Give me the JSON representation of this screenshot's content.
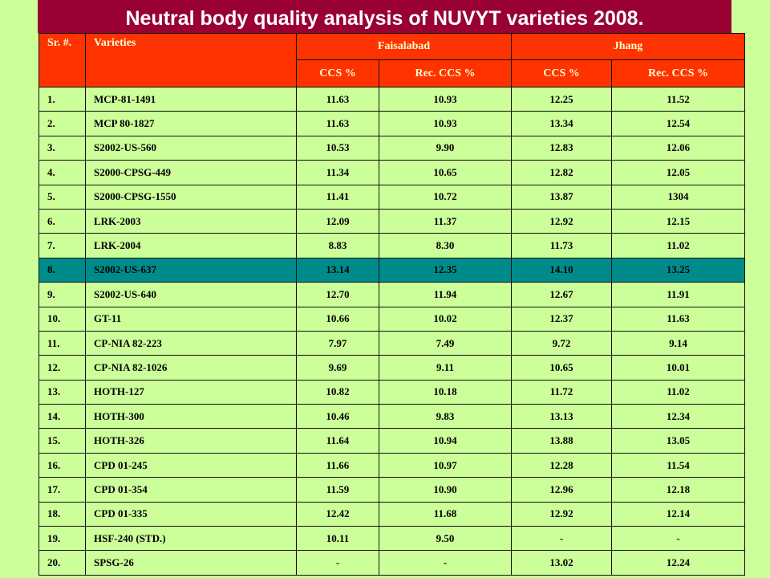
{
  "title": "Neutral body quality analysis of NUVYT  varieties 2008.",
  "headers": {
    "sr": "Sr. #.",
    "varieties": "Varieties",
    "faisalabad": "Faisalabad",
    "jhang": "Jhang",
    "ccs": "CCS %",
    "rec_ccs": "Rec. CCS %"
  },
  "colors": {
    "title_bg": "#990033",
    "header_bg": "#ff3300",
    "row_bg": "#ccff99",
    "highlight_bg": "#008b8b"
  },
  "highlight_row": 7,
  "rows": [
    [
      "1.",
      "MCP-81-1491",
      "11.63",
      "10.93",
      "12.25",
      "11.52"
    ],
    [
      "2.",
      "MCP 80-1827",
      "11.63",
      "10.93",
      "13.34",
      "12.54"
    ],
    [
      "3.",
      "S2002-US-560",
      "10.53",
      "9.90",
      "12.83",
      "12.06"
    ],
    [
      "4.",
      "S2000-CPSG-449",
      "11.34",
      "10.65",
      "12.82",
      "12.05"
    ],
    [
      "5.",
      "S2000-CPSG-1550",
      "11.41",
      "10.72",
      "13.87",
      "1304"
    ],
    [
      "6.",
      "LRK-2003",
      "12.09",
      "11.37",
      "12.92",
      "12.15"
    ],
    [
      "7.",
      "LRK-2004",
      "8.83",
      "8.30",
      "11.73",
      "11.02"
    ],
    [
      "8.",
      "S2002-US-637",
      "13.14",
      "12.35",
      "14.10",
      "13.25"
    ],
    [
      "9.",
      "S2002-US-640",
      "12.70",
      "11.94",
      "12.67",
      "11.91"
    ],
    [
      "10.",
      "GT-11",
      "10.66",
      "10.02",
      "12.37",
      "11.63"
    ],
    [
      "11.",
      "CP-NIA 82-223",
      "7.97",
      "7.49",
      "9.72",
      "9.14"
    ],
    [
      "12.",
      "CP-NIA 82-1026",
      "9.69",
      "9.11",
      "10.65",
      "10.01"
    ],
    [
      "13.",
      "HOTH-127",
      "10.82",
      "10.18",
      "11.72",
      "11.02"
    ],
    [
      "14.",
      "HOTH-300",
      "10.46",
      "9.83",
      "13.13",
      "12.34"
    ],
    [
      "15.",
      "HOTH-326",
      "11.64",
      "10.94",
      "13.88",
      "13.05"
    ],
    [
      "16.",
      "CPD 01-245",
      "11.66",
      "10.97",
      "12.28",
      "11.54"
    ],
    [
      "17.",
      "CPD 01-354",
      "11.59",
      "10.90",
      "12.96",
      "12.18"
    ],
    [
      "18.",
      "CPD 01-335",
      "12.42",
      "11.68",
      "12.92",
      "12.14"
    ],
    [
      "19.",
      "HSF-240 (STD.)",
      "10.11",
      "9.50",
      "-",
      "-"
    ],
    [
      "20.",
      "SPSG-26",
      "-",
      "-",
      "13.02",
      "12.24"
    ]
  ]
}
